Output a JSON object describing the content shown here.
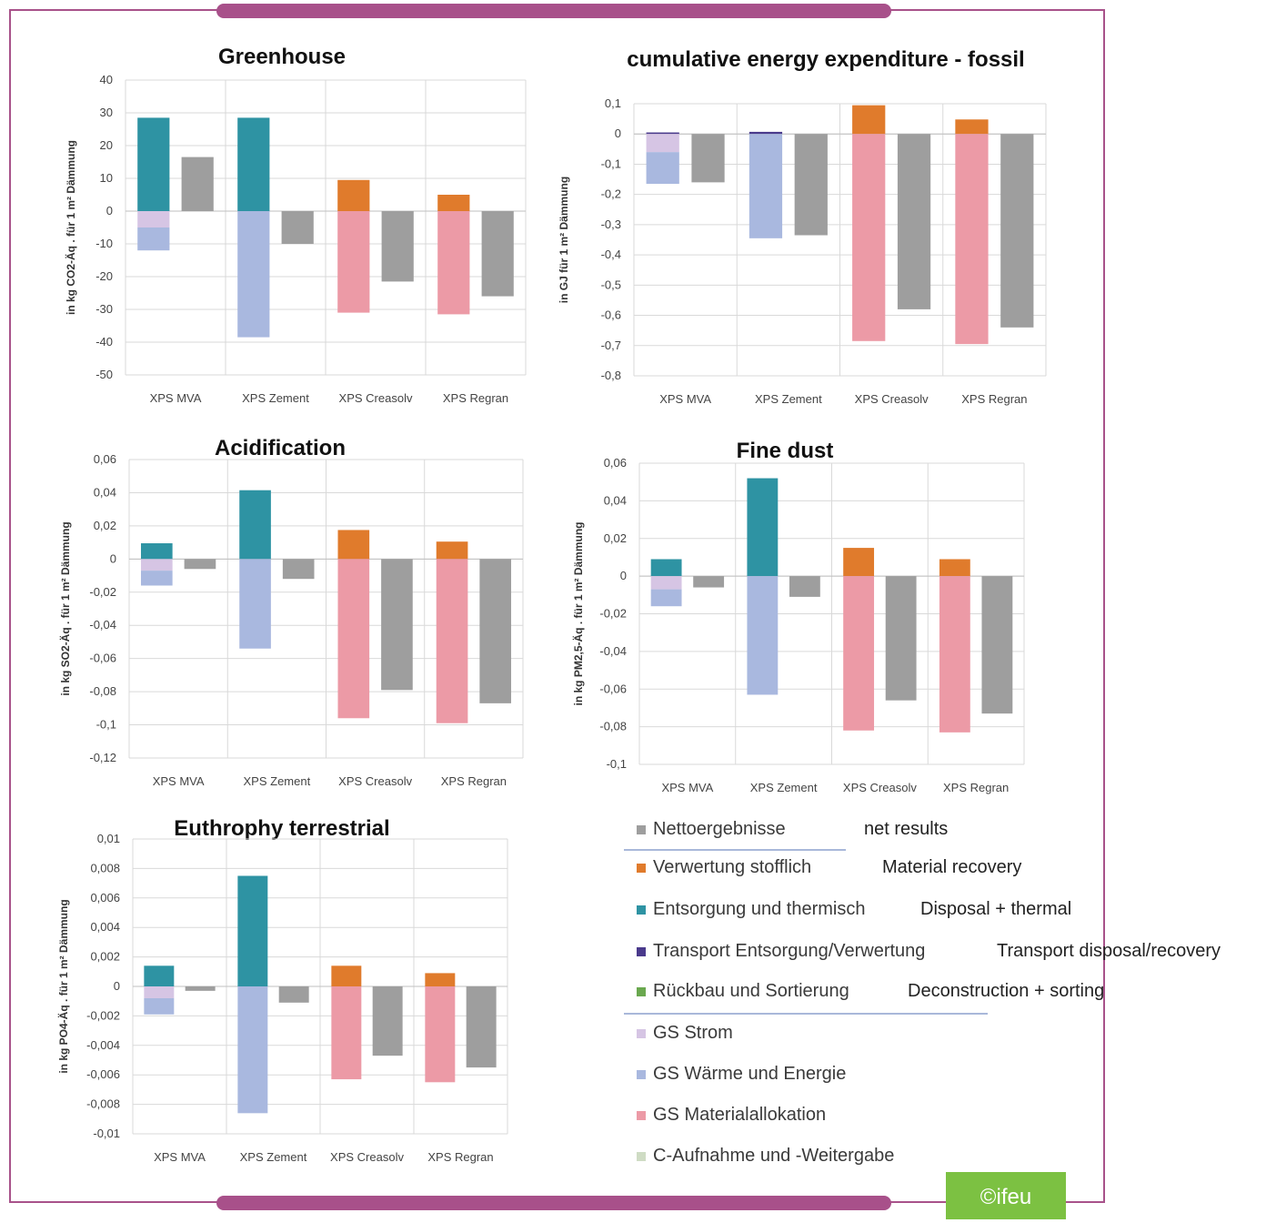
{
  "colors": {
    "net": "#9e9e9e",
    "recovery": "#e07b2c",
    "disposal": "#2e93a3",
    "transport": "#4a3a8c",
    "deconstruction": "#6aa84f",
    "gs_strom": "#d6c5e4",
    "gs_waerme": "#a9b8df",
    "gs_material": "#ec9aa6",
    "c_aufnahme": "#cfdcc4",
    "grid": "#d9d9d9",
    "frame": "#a8528a",
    "ifeu_bg": "#7cc142"
  },
  "chart_data": [
    {
      "type": "bar",
      "title": "Greenhouse",
      "ylabel": "in kg CO2-Äq . für 1 m² Dämmung",
      "categories": [
        "XPS MVA",
        "XPS Zement",
        "XPS Creasolv",
        "XPS Regran"
      ],
      "ylim": [
        -50,
        40
      ],
      "yticks": [
        "40",
        "30",
        "20",
        "10",
        "0",
        "-10",
        "-20",
        "-30",
        "-40",
        "-50"
      ],
      "series": [
        {
          "name": "Entsorgung und thermisch",
          "values": [
            28.5,
            28.5,
            0,
            0
          ]
        },
        {
          "name": "Verwertung stofflich",
          "values": [
            0,
            0,
            9.5,
            5
          ]
        },
        {
          "name": "GS Strom",
          "values": [
            -5,
            0,
            0,
            0
          ]
        },
        {
          "name": "GS Wärme und Energie",
          "values": [
            -7,
            -38.5,
            0,
            0
          ]
        },
        {
          "name": "GS Materialallokation",
          "values": [
            0,
            0,
            -31,
            -31.5
          ]
        },
        {
          "name": "Nettoergebnisse",
          "values": [
            16.5,
            -10,
            -21.5,
            -26
          ]
        }
      ]
    },
    {
      "type": "bar",
      "title": "cumulative energy expenditure - fossil",
      "ylabel": "in GJ für 1 m² Dämmung",
      "categories": [
        "XPS MVA",
        "XPS Zement",
        "XPS Creasolv",
        "XPS Regran"
      ],
      "ylim": [
        -0.8,
        0.1
      ],
      "yticks": [
        "0,1",
        "0",
        "-0,1",
        "-0,2",
        "-0,3",
        "-0,4",
        "-0,5",
        "-0,6",
        "-0,7",
        "-0,8"
      ],
      "series": [
        {
          "name": "Transport Entsorgung/Verwertung",
          "values": [
            0.005,
            0.007,
            0,
            0
          ]
        },
        {
          "name": "Verwertung stofflich",
          "values": [
            0,
            0,
            0.095,
            0.048
          ]
        },
        {
          "name": "GS Strom",
          "values": [
            -0.06,
            0,
            0,
            0
          ]
        },
        {
          "name": "GS Wärme und Energie",
          "values": [
            -0.105,
            -0.345,
            0,
            0
          ]
        },
        {
          "name": "GS Materialallokation",
          "values": [
            0,
            0,
            -0.685,
            -0.695
          ]
        },
        {
          "name": "Nettoergebnisse",
          "values": [
            -0.16,
            -0.335,
            -0.58,
            -0.64
          ]
        }
      ]
    },
    {
      "type": "bar",
      "title": "Acidification",
      "ylabel": "in kg SO2-Äq . für 1 m² Dämmung",
      "categories": [
        "XPS MVA",
        "XPS Zement",
        "XPS Creasolv",
        "XPS Regran"
      ],
      "ylim": [
        -0.12,
        0.06
      ],
      "yticks": [
        "0,06",
        "0,04",
        "0,02",
        "0",
        "-0,02",
        "-0,04",
        "-0,06",
        "-0,08",
        "-0,1",
        "-0,12"
      ],
      "series": [
        {
          "name": "Entsorgung und thermisch",
          "values": [
            0.0095,
            0.0415,
            0,
            0
          ]
        },
        {
          "name": "Verwertung stofflich",
          "values": [
            0,
            0,
            0.0175,
            0.0105
          ]
        },
        {
          "name": "GS Strom",
          "values": [
            -0.007,
            0,
            0,
            0
          ]
        },
        {
          "name": "GS Wärme und Energie",
          "values": [
            -0.009,
            -0.054,
            0,
            0
          ]
        },
        {
          "name": "GS Materialallokation",
          "values": [
            0,
            0,
            -0.096,
            -0.099
          ]
        },
        {
          "name": "Nettoergebnisse",
          "values": [
            -0.006,
            -0.012,
            -0.079,
            -0.087
          ]
        }
      ]
    },
    {
      "type": "bar",
      "title": "Fine dust",
      "ylabel": "in kg PM2,5-Äq . für 1 m² Dämmung",
      "categories": [
        "XPS MVA",
        "XPS Zement",
        "XPS Creasolv",
        "XPS Regran"
      ],
      "ylim": [
        -0.1,
        0.06
      ],
      "yticks": [
        "0,06",
        "0,04",
        "0,02",
        "0",
        "-0,02",
        "-0,04",
        "-0,06",
        "-0,08",
        "-0,1"
      ],
      "series": [
        {
          "name": "Entsorgung und thermisch",
          "values": [
            0.009,
            0.052,
            0,
            0
          ]
        },
        {
          "name": "Verwertung stofflich",
          "values": [
            0,
            0,
            0.015,
            0.009
          ]
        },
        {
          "name": "GS Strom",
          "values": [
            -0.007,
            0,
            0,
            0
          ]
        },
        {
          "name": "GS Wärme und Energie",
          "values": [
            -0.009,
            -0.063,
            0,
            0
          ]
        },
        {
          "name": "GS Materialallokation",
          "values": [
            0,
            0,
            -0.082,
            -0.083
          ]
        },
        {
          "name": "Nettoergebnisse",
          "values": [
            -0.006,
            -0.011,
            -0.066,
            -0.073
          ]
        }
      ]
    },
    {
      "type": "bar",
      "title": "Euthrophy terrestrial",
      "ylabel": "in kg PO4-Äq . für 1 m² Dämmung",
      "categories": [
        "XPS MVA",
        "XPS Zement",
        "XPS Creasolv",
        "XPS Regran"
      ],
      "ylim": [
        -0.01,
        0.01
      ],
      "yticks": [
        "0,01",
        "0,008",
        "0,006",
        "0,004",
        "0,002",
        "0",
        "-0,002",
        "-0,004",
        "-0,006",
        "-0,008",
        "-0,01"
      ],
      "series": [
        {
          "name": "Entsorgung und thermisch",
          "values": [
            0.0014,
            0.0075,
            0,
            0
          ]
        },
        {
          "name": "Verwertung stofflich",
          "values": [
            0,
            0,
            0.0014,
            0.0009
          ]
        },
        {
          "name": "GS Strom",
          "values": [
            -0.0008,
            0,
            0,
            0
          ]
        },
        {
          "name": "GS Wärme und Energie",
          "values": [
            -0.0011,
            -0.0086,
            0,
            0
          ]
        },
        {
          "name": "GS Materialallokation",
          "values": [
            0,
            0,
            -0.0063,
            -0.0065
          ]
        },
        {
          "name": "Nettoergebnisse",
          "values": [
            -0.0003,
            -0.0011,
            -0.0047,
            -0.0055
          ]
        }
      ]
    }
  ],
  "legend": [
    {
      "label": "Nettoergebnisse",
      "translation": "net results",
      "color_key": "net"
    },
    {
      "label": "Verwertung stofflich",
      "translation": "Material recovery",
      "color_key": "recovery"
    },
    {
      "label": "Entsorgung und thermisch",
      "translation": "Disposal + thermal",
      "color_key": "disposal"
    },
    {
      "label": "Transport Entsorgung/Verwertung",
      "translation": "Transport disposal/recovery",
      "color_key": "transport"
    },
    {
      "label": "Rückbau und Sortierung",
      "translation": "Deconstruction + sorting",
      "color_key": "deconstruction"
    },
    {
      "label": "GS Strom",
      "translation": "",
      "color_key": "gs_strom"
    },
    {
      "label": "GS Wärme und Energie",
      "translation": "",
      "color_key": "gs_waerme"
    },
    {
      "label": "GS Materialallokation",
      "translation": "",
      "color_key": "gs_material"
    },
    {
      "label": "C-Aufnahme und -Weitergabe",
      "translation": "",
      "color_key": "c_aufnahme"
    }
  ],
  "badge": "©ifeu"
}
